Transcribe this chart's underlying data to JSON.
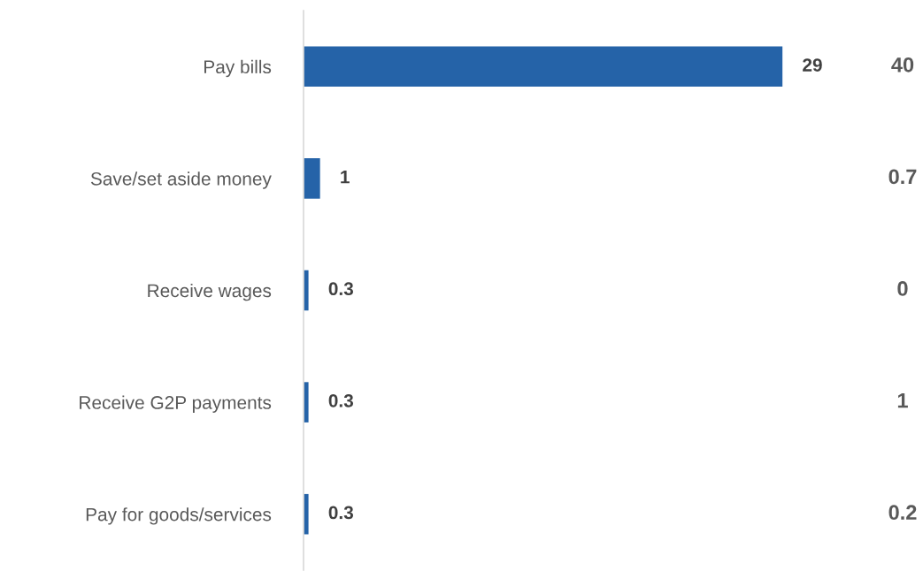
{
  "chart_data": {
    "type": "bar",
    "orientation": "horizontal",
    "categories": [
      "Pay bills",
      "Save/set aside money",
      "Receive wages",
      "Receive G2P payments",
      "Pay for goods/services"
    ],
    "values": [
      29,
      1,
      0.3,
      0.3,
      0.3
    ],
    "color": "#2563a8",
    "data_labels": true,
    "grid": false,
    "legend": false,
    "annotations": [
      "40",
      "0.7",
      "0",
      "1",
      "0.2"
    ]
  }
}
